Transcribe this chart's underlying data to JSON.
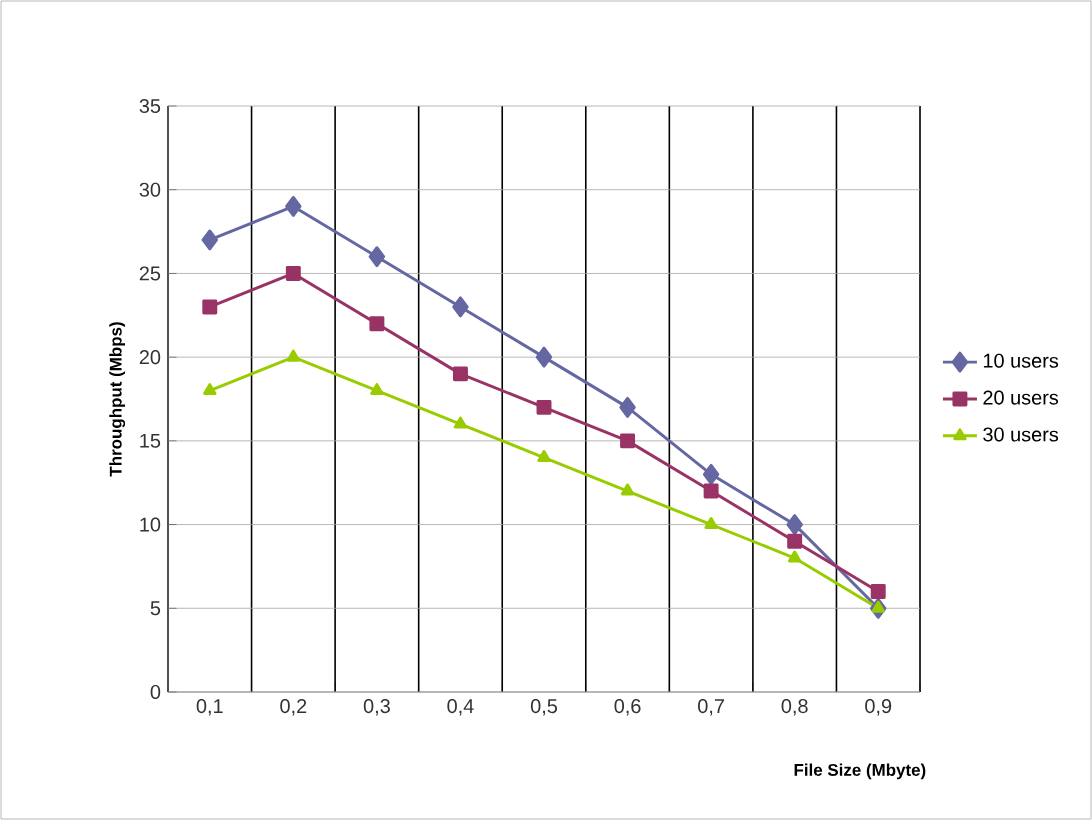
{
  "chart_data": {
    "type": "line",
    "xlabel": "File Size (Mbyte)",
    "ylabel": "Throughput (Mbps)",
    "categories": [
      "0,1",
      "0,2",
      "0,3",
      "0,4",
      "0,5",
      "0,6",
      "0,7",
      "0,8",
      "0,9"
    ],
    "series": [
      {
        "name": "10 users",
        "color": "#6567a3",
        "marker": "diamond",
        "values": [
          27,
          29,
          26,
          23,
          20,
          17,
          13,
          10,
          5
        ]
      },
      {
        "name": "20 users",
        "color": "#993366",
        "marker": "square",
        "values": [
          23,
          25,
          22,
          19,
          17,
          15,
          12,
          9,
          6
        ]
      },
      {
        "name": "30 users",
        "color": "#99cc00",
        "marker": "triangle",
        "values": [
          18,
          20,
          18,
          16,
          14,
          12,
          10,
          8,
          5
        ]
      }
    ],
    "ylim": [
      0,
      35
    ],
    "yticks": [
      0,
      5,
      10,
      15,
      20,
      25,
      30,
      35
    ],
    "grid": true,
    "legend": "right",
    "line_style": "solid"
  }
}
